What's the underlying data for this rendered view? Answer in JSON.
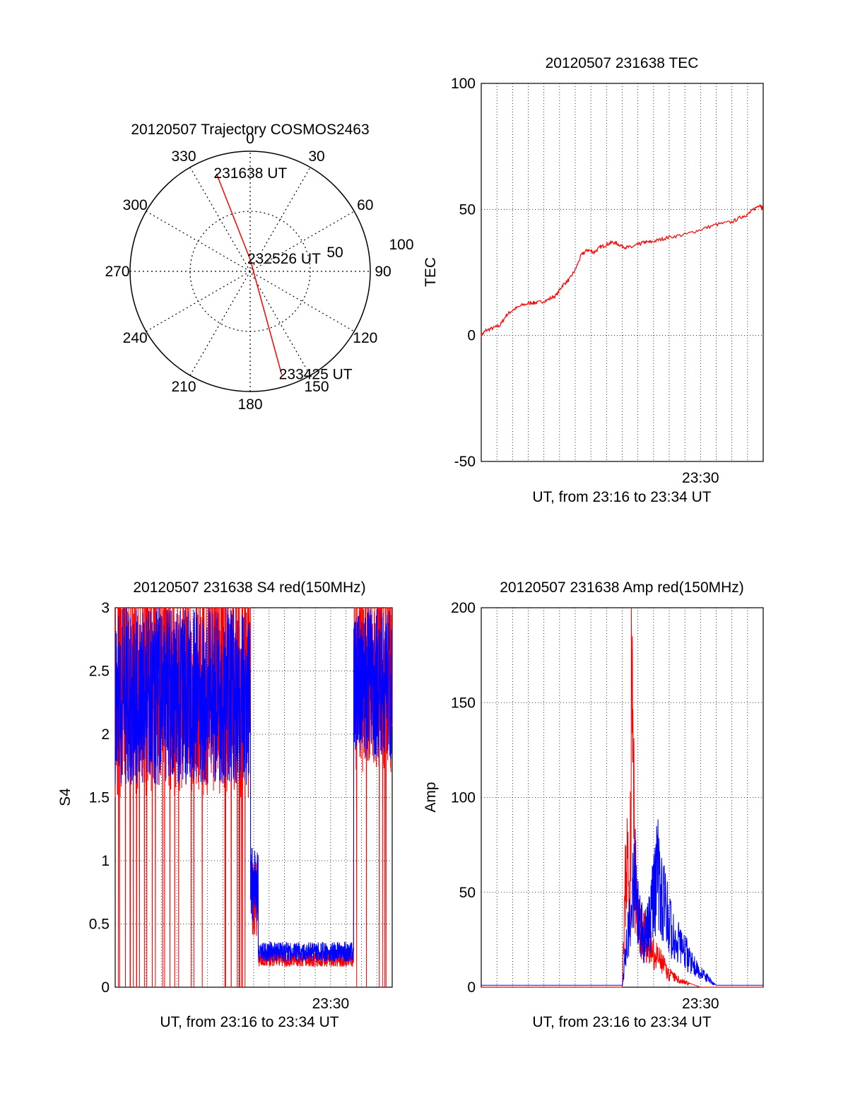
{
  "chart_data": [
    {
      "id": "trajectory",
      "type": "polar",
      "title": "20120507 Trajectory COSMOS2463",
      "azimuth_labels": [
        "0",
        "30",
        "60",
        "90",
        "120",
        "150",
        "180",
        "210",
        "240",
        "270",
        "300",
        "330"
      ],
      "radial_labels": [
        "50",
        "100"
      ],
      "elevation_range": [
        0,
        100
      ],
      "points": [
        {
          "label": "231638 UT",
          "azimuth": 341,
          "elevation": 14
        },
        {
          "label": "232526 UT",
          "azimuth": 0,
          "elevation": 90
        },
        {
          "label": "233425 UT",
          "azimuth": 163,
          "elevation": 10
        }
      ],
      "line_color": "#ff0000"
    },
    {
      "id": "tec",
      "type": "line",
      "title": "20120507 231638 TEC",
      "ylabel": "TEC",
      "xlabel": "UT, from 23:16 to 23:34 UT",
      "xlim": [
        "23:16",
        "23:34"
      ],
      "ylim": [
        -50,
        100
      ],
      "yticks": [
        "-50",
        "0",
        "50",
        "100"
      ],
      "xtick_label": "23:30",
      "grid": true,
      "series": [
        {
          "color": "#ff0000",
          "x_minutes": [
            0.0,
            0.3,
            0.8,
            1.2,
            1.6,
            2.0,
            2.6,
            3.2,
            3.6,
            4.2,
            4.8,
            5.2,
            5.6,
            6.0,
            6.4,
            6.8,
            7.2,
            7.6,
            8.0,
            8.4,
            8.8,
            9.2,
            9.6,
            10.0,
            10.4,
            10.8,
            11.4,
            12.0,
            13.0,
            14.0,
            15.0,
            16.0,
            16.6,
            17.0,
            17.4,
            17.8,
            18.0
          ],
          "values": [
            0,
            2,
            3,
            4,
            8,
            10,
            12,
            13,
            13,
            14,
            16,
            20,
            22,
            26,
            32,
            34,
            33,
            35,
            36,
            37,
            36,
            35,
            35,
            36,
            37,
            37,
            38,
            39,
            40,
            42,
            44,
            45,
            47,
            48,
            50,
            52,
            50
          ]
        }
      ]
    },
    {
      "id": "s4",
      "type": "line",
      "title": "20120507 231638 S4 red(150MHz)",
      "ylabel": "S4",
      "xlabel": "UT, from 23:16 to 23:34 UT",
      "xlim": [
        "23:16",
        "23:34"
      ],
      "ylim": [
        0,
        3
      ],
      "yticks": [
        "0",
        "0.5",
        "1",
        "1.5",
        "2",
        "2.5",
        "3"
      ],
      "xtick_label": "23:30",
      "grid": true,
      "series": [
        {
          "color": "#ff0000",
          "segments": [
            {
              "from": 0.0,
              "to": 8.8,
              "level": 2.4,
              "jitter": 0.9
            },
            {
              "from": 8.8,
              "to": 9.3,
              "level": 0.7,
              "jitter": 0.3
            },
            {
              "from": 9.3,
              "to": 15.5,
              "level": 0.22,
              "jitter": 0.06
            },
            {
              "from": 15.5,
              "to": 18.0,
              "level": 2.5,
              "jitter": 0.8
            }
          ]
        },
        {
          "color": "#0000ff",
          "segments": [
            {
              "from": 0.0,
              "to": 8.8,
              "level": 2.3,
              "jitter": 0.7
            },
            {
              "from": 8.8,
              "to": 9.3,
              "level": 0.8,
              "jitter": 0.3
            },
            {
              "from": 9.3,
              "to": 15.5,
              "level": 0.28,
              "jitter": 0.08
            },
            {
              "from": 15.5,
              "to": 18.0,
              "level": 2.4,
              "jitter": 0.6
            }
          ]
        }
      ]
    },
    {
      "id": "amp",
      "type": "line",
      "title": "20120507 231638 Amp red(150MHz)",
      "ylabel": "Amp",
      "xlabel": "UT, from 23:16 to 23:34 UT",
      "xlim": [
        "23:16",
        "23:34"
      ],
      "ylim": [
        0,
        200
      ],
      "yticks": [
        "0",
        "50",
        "100",
        "150",
        "200"
      ],
      "xtick_label": "23:30",
      "grid": true,
      "series": [
        {
          "color": "#ff0000",
          "x_minutes": [
            0.0,
            9.0,
            9.1,
            9.3,
            9.5,
            9.6,
            9.8,
            10.0,
            10.5,
            11.0,
            11.5,
            12.0,
            12.5,
            13.0,
            14.0,
            18.0
          ],
          "values": [
            0,
            0,
            40,
            80,
            60,
            198,
            70,
            40,
            30,
            20,
            15,
            8,
            5,
            3,
            0,
            0
          ]
        },
        {
          "color": "#0000ff",
          "x_minutes": [
            0.0,
            9.0,
            9.2,
            9.5,
            9.8,
            10.0,
            10.4,
            10.8,
            11.2,
            11.6,
            12.0,
            12.5,
            13.0,
            13.5,
            14.0,
            14.5,
            15.0,
            18.0
          ],
          "values": [
            1,
            1,
            20,
            40,
            70,
            45,
            30,
            40,
            72,
            55,
            40,
            30,
            22,
            15,
            10,
            5,
            1,
            1
          ]
        }
      ]
    }
  ]
}
